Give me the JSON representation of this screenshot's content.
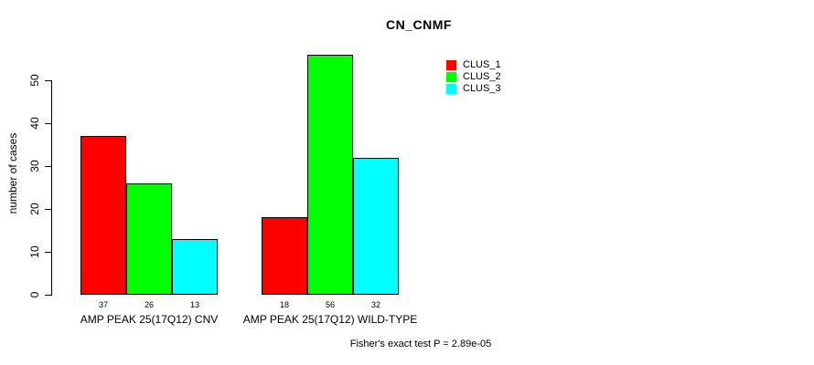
{
  "chart_data": {
    "type": "bar",
    "title": "CN_CNMF",
    "ylabel": "number of cases",
    "xlabel": "",
    "ylim": [
      0,
      56
    ],
    "yticks": [
      0,
      10,
      20,
      30,
      40,
      50
    ],
    "grid": false,
    "legend_position": "top-right",
    "bar_border_color": "#000000",
    "series": [
      {
        "name": "CLUS_1",
        "color": "#FF0000"
      },
      {
        "name": "CLUS_2",
        "color": "#00FF00"
      },
      {
        "name": "CLUS_3",
        "color": "#00FFFF"
      }
    ],
    "groups": [
      {
        "label": "AMP PEAK 25(17Q12) CNV",
        "values": [
          37,
          26,
          13
        ]
      },
      {
        "label": "AMP PEAK 25(17Q12) WILD-TYPE",
        "values": [
          18,
          56,
          32
        ]
      }
    ],
    "footnote": "Fisher's exact test P = 2.89e-05"
  }
}
